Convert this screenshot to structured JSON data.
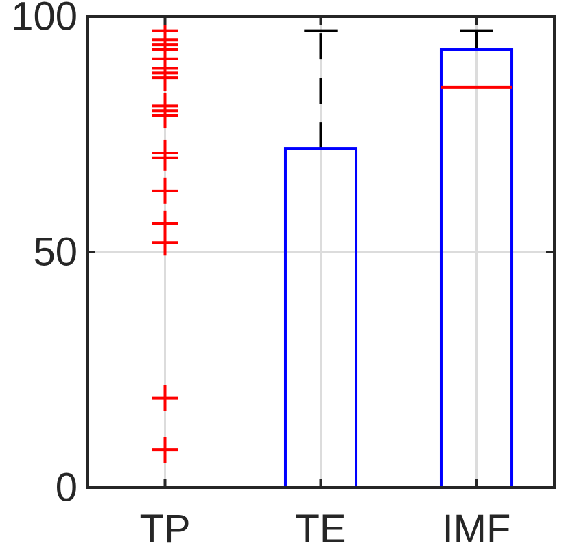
{
  "chart_data": {
    "type": "box",
    "title": "",
    "xlabel": "",
    "ylabel": "",
    "categories": [
      "TP",
      "TE",
      "IMF"
    ],
    "ylim": [
      0,
      100
    ],
    "yticks": [
      0,
      50,
      100
    ],
    "ytick_labels": [
      "0",
      "50",
      "100"
    ],
    "grid": true,
    "legend": "none",
    "boxes": [
      {
        "category": "TP",
        "whisker_low": 0,
        "q1": 0,
        "median": 0,
        "q3": 0,
        "whisker_high": 0,
        "outliers": [
          8,
          19,
          52,
          56,
          63,
          70,
          71,
          79,
          80,
          81,
          87,
          88,
          89,
          91,
          93,
          94,
          95,
          97
        ]
      },
      {
        "category": "TE",
        "whisker_low": 0,
        "q1": 0,
        "median": 0,
        "q3": 72,
        "whisker_high": 97,
        "outliers": []
      },
      {
        "category": "IMF",
        "whisker_low": 0,
        "q1": 0,
        "median": 85,
        "q3": 93,
        "whisker_high": 97,
        "outliers": []
      }
    ],
    "colors": {
      "box": "#0000ff",
      "median": "#ff0000",
      "whisker": "#000000",
      "outlier": "#ff0000",
      "axis": "#262626",
      "grid": "#dcdcdc"
    }
  }
}
